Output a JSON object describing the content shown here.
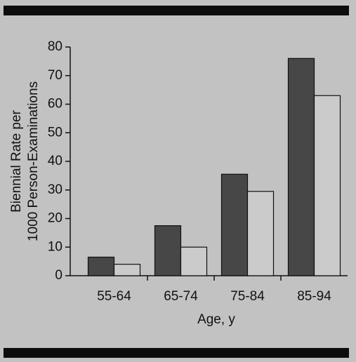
{
  "chart_data": {
    "type": "bar",
    "ylabel": [
      "Biennial Rate per",
      "1000 Person-Examinations"
    ],
    "xlabel": "Age, y",
    "categories": [
      "55-64",
      "65-74",
      "75-84",
      "85-94"
    ],
    "series": [
      {
        "color": "#474747",
        "values": [
          6.5,
          17.5,
          35.5,
          76
        ]
      },
      {
        "color": "#cbcbcb",
        "values": [
          4,
          10,
          29.5,
          63
        ]
      }
    ],
    "ylim": [
      0,
      80
    ],
    "yticks": [
      0,
      10,
      20,
      30,
      40,
      50,
      60,
      70,
      80
    ]
  }
}
